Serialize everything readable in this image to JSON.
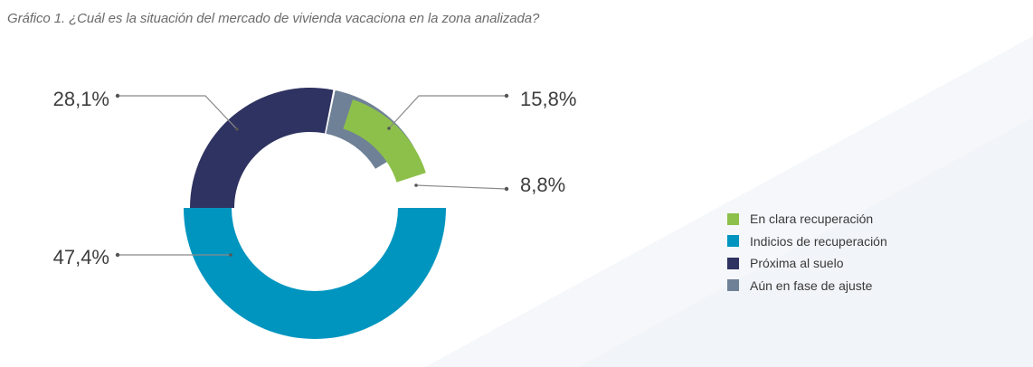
{
  "title": "Gráfico 1. ¿Cuál es la situación del mercado de vivienda vacaciona en la zona analizada?",
  "chart_data": {
    "type": "pie",
    "variant": "donut",
    "title": "Gráfico 1. ¿Cuál es la situación del mercado de vivienda vacaciona en la zona analizada?",
    "legend_position": "right",
    "slices": [
      {
        "name": "En clara recuperación",
        "value": 8.8,
        "label": "8,8%",
        "color": "#8dc04a"
      },
      {
        "name": "Indicios de recuperación",
        "value": 47.4,
        "label": "47,4%",
        "color": "#0095bf"
      },
      {
        "name": "Próxima al suelo",
        "value": 28.1,
        "label": "28,1%",
        "color": "#2f3361"
      },
      {
        "name": "Aún en fase de ajuste",
        "value": 15.8,
        "label": "15,8%",
        "color": "#6f8196"
      }
    ]
  }
}
